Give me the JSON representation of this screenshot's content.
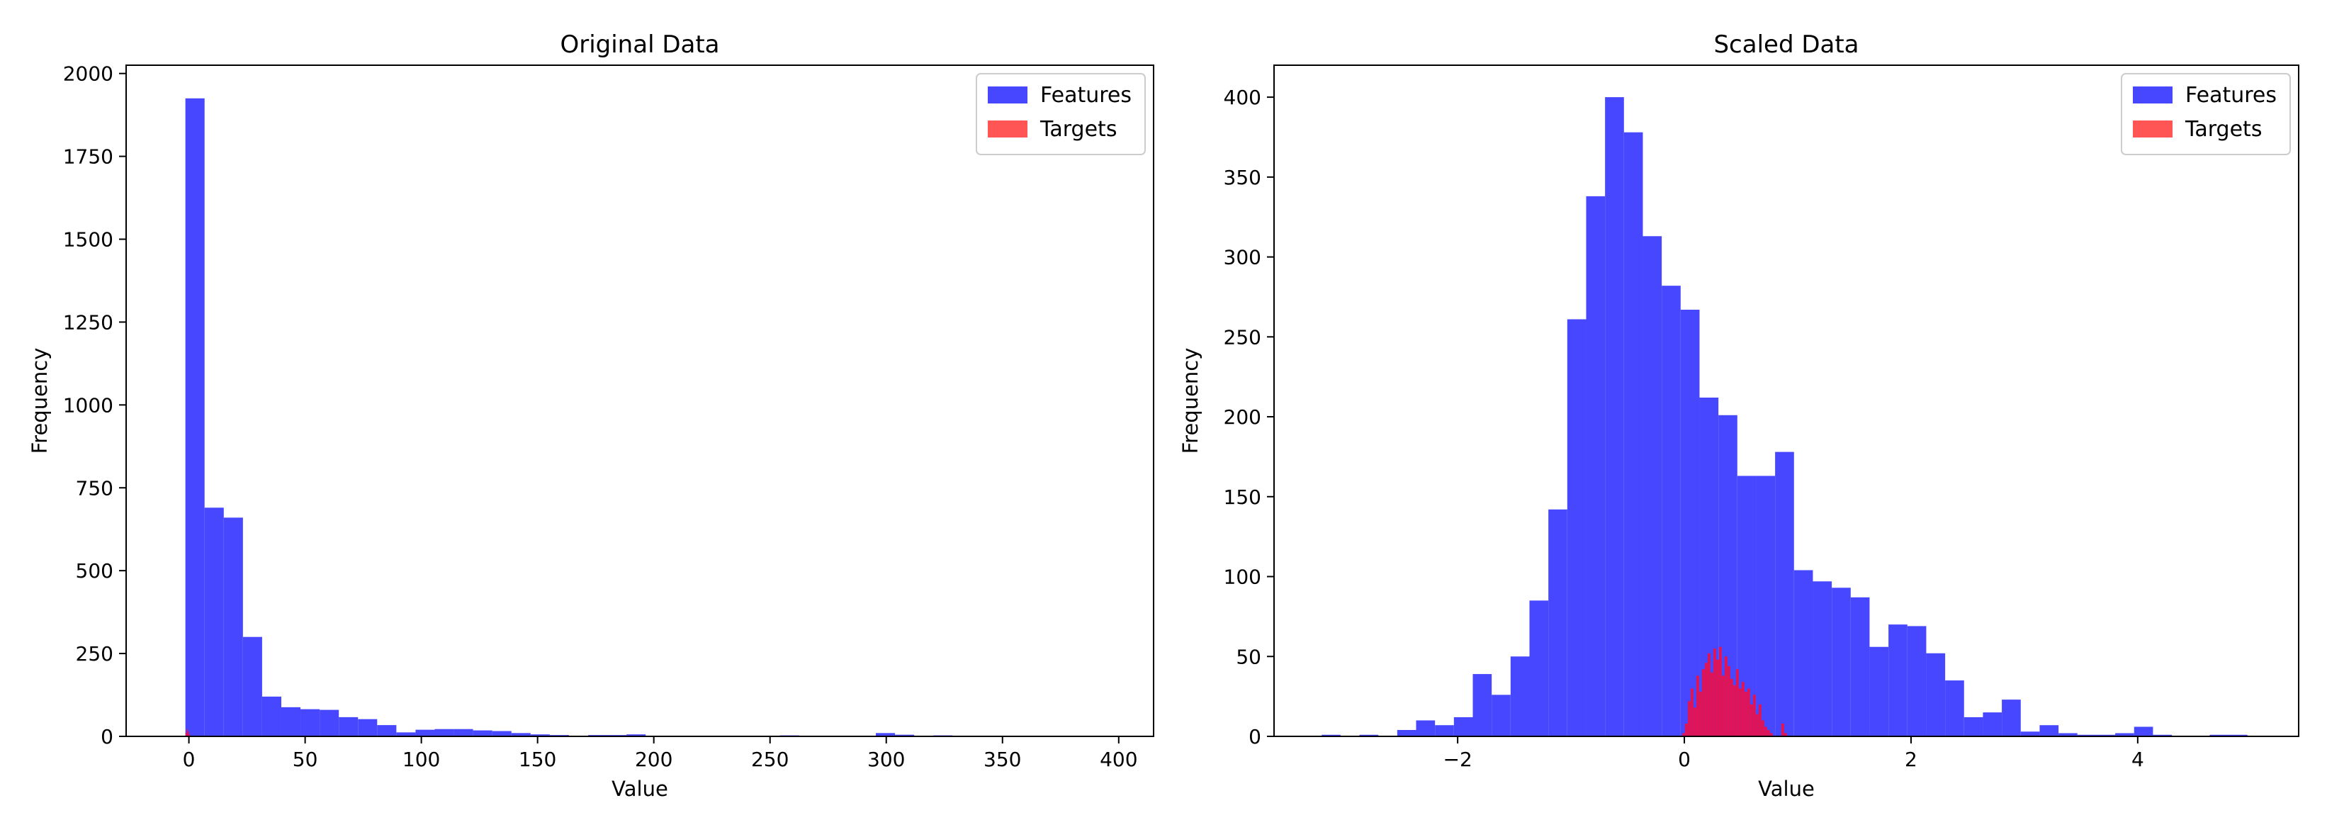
{
  "colors": {
    "features": "#4747ff",
    "targets": "#ff4c4c",
    "overlap": "#e8124e",
    "axis": "#000000"
  },
  "chart_data": [
    {
      "type": "histogram",
      "title": "Original Data",
      "xlabel": "Value",
      "ylabel": "Frequency",
      "xlim": [
        -27,
        415
      ],
      "ylim": [
        0,
        2025
      ],
      "xticks": [
        0,
        50,
        100,
        150,
        200,
        250,
        300,
        350,
        400
      ],
      "xtick_labels": [
        "0",
        "50",
        "100",
        "150",
        "200",
        "250",
        "300",
        "350",
        "400"
      ],
      "yticks": [
        0,
        250,
        500,
        750,
        1000,
        1250,
        1500,
        1750,
        2000
      ],
      "ytick_labels": [
        "0",
        "250",
        "500",
        "750",
        "1000",
        "1250",
        "1500",
        "1750",
        "2000"
      ],
      "grid": false,
      "legend": {
        "position": "top-right",
        "entries": [
          "Features",
          "Targets"
        ]
      },
      "series": [
        {
          "name": "Features",
          "bin_start": -1.5,
          "bin_width": 8.25,
          "counts": [
            1925,
            690,
            660,
            300,
            120,
            88,
            82,
            80,
            58,
            52,
            34,
            12,
            20,
            22,
            22,
            18,
            16,
            10,
            6,
            4,
            2,
            4,
            4,
            6,
            2,
            2,
            1,
            1,
            1,
            2,
            1,
            3,
            1,
            1,
            1,
            1,
            10,
            5,
            1,
            3,
            1,
            1,
            1,
            1,
            1,
            1,
            1,
            1
          ]
        },
        {
          "name": "Targets",
          "bin_start": -1.5,
          "bin_width": 0.5,
          "counts": [
            10,
            22,
            14,
            6
          ]
        }
      ]
    },
    {
      "type": "histogram",
      "title": "Scaled Data",
      "xlabel": "Value",
      "ylabel": "Frequency",
      "xlim": [
        -3.62,
        5.42
      ],
      "ylim": [
        0,
        420
      ],
      "xticks": [
        -2,
        0,
        2,
        4
      ],
      "xtick_labels": [
        "−2",
        "0",
        "2",
        "4"
      ],
      "yticks": [
        0,
        50,
        100,
        150,
        200,
        250,
        300,
        350,
        400
      ],
      "ytick_labels": [
        "0",
        "50",
        "100",
        "150",
        "200",
        "250",
        "300",
        "350",
        "400"
      ],
      "grid": false,
      "legend": {
        "position": "top-right",
        "entries": [
          "Features",
          "Targets"
        ]
      },
      "series": [
        {
          "name": "Features",
          "bin_start": -3.2,
          "bin_width": 0.1667,
          "counts": [
            1,
            0,
            1,
            0,
            4,
            10,
            7,
            12,
            39,
            26,
            50,
            85,
            142,
            261,
            338,
            400,
            378,
            313,
            282,
            267,
            212,
            201,
            163,
            163,
            178,
            104,
            97,
            93,
            87,
            56,
            70,
            69,
            52,
            35,
            12,
            15,
            23,
            3,
            7,
            2,
            1,
            1,
            2,
            6,
            1,
            0,
            0,
            1,
            1
          ]
        },
        {
          "name": "Targets",
          "bin_start": -0.02,
          "bin_width": 0.025,
          "counts": [
            2,
            8,
            22,
            30,
            18,
            38,
            28,
            42,
            46,
            52,
            40,
            55,
            48,
            56,
            38,
            50,
            44,
            36,
            32,
            42,
            30,
            34,
            28,
            30,
            20,
            26,
            14,
            20,
            10,
            6,
            4,
            2,
            0,
            0,
            0,
            8,
            2
          ]
        }
      ]
    }
  ]
}
